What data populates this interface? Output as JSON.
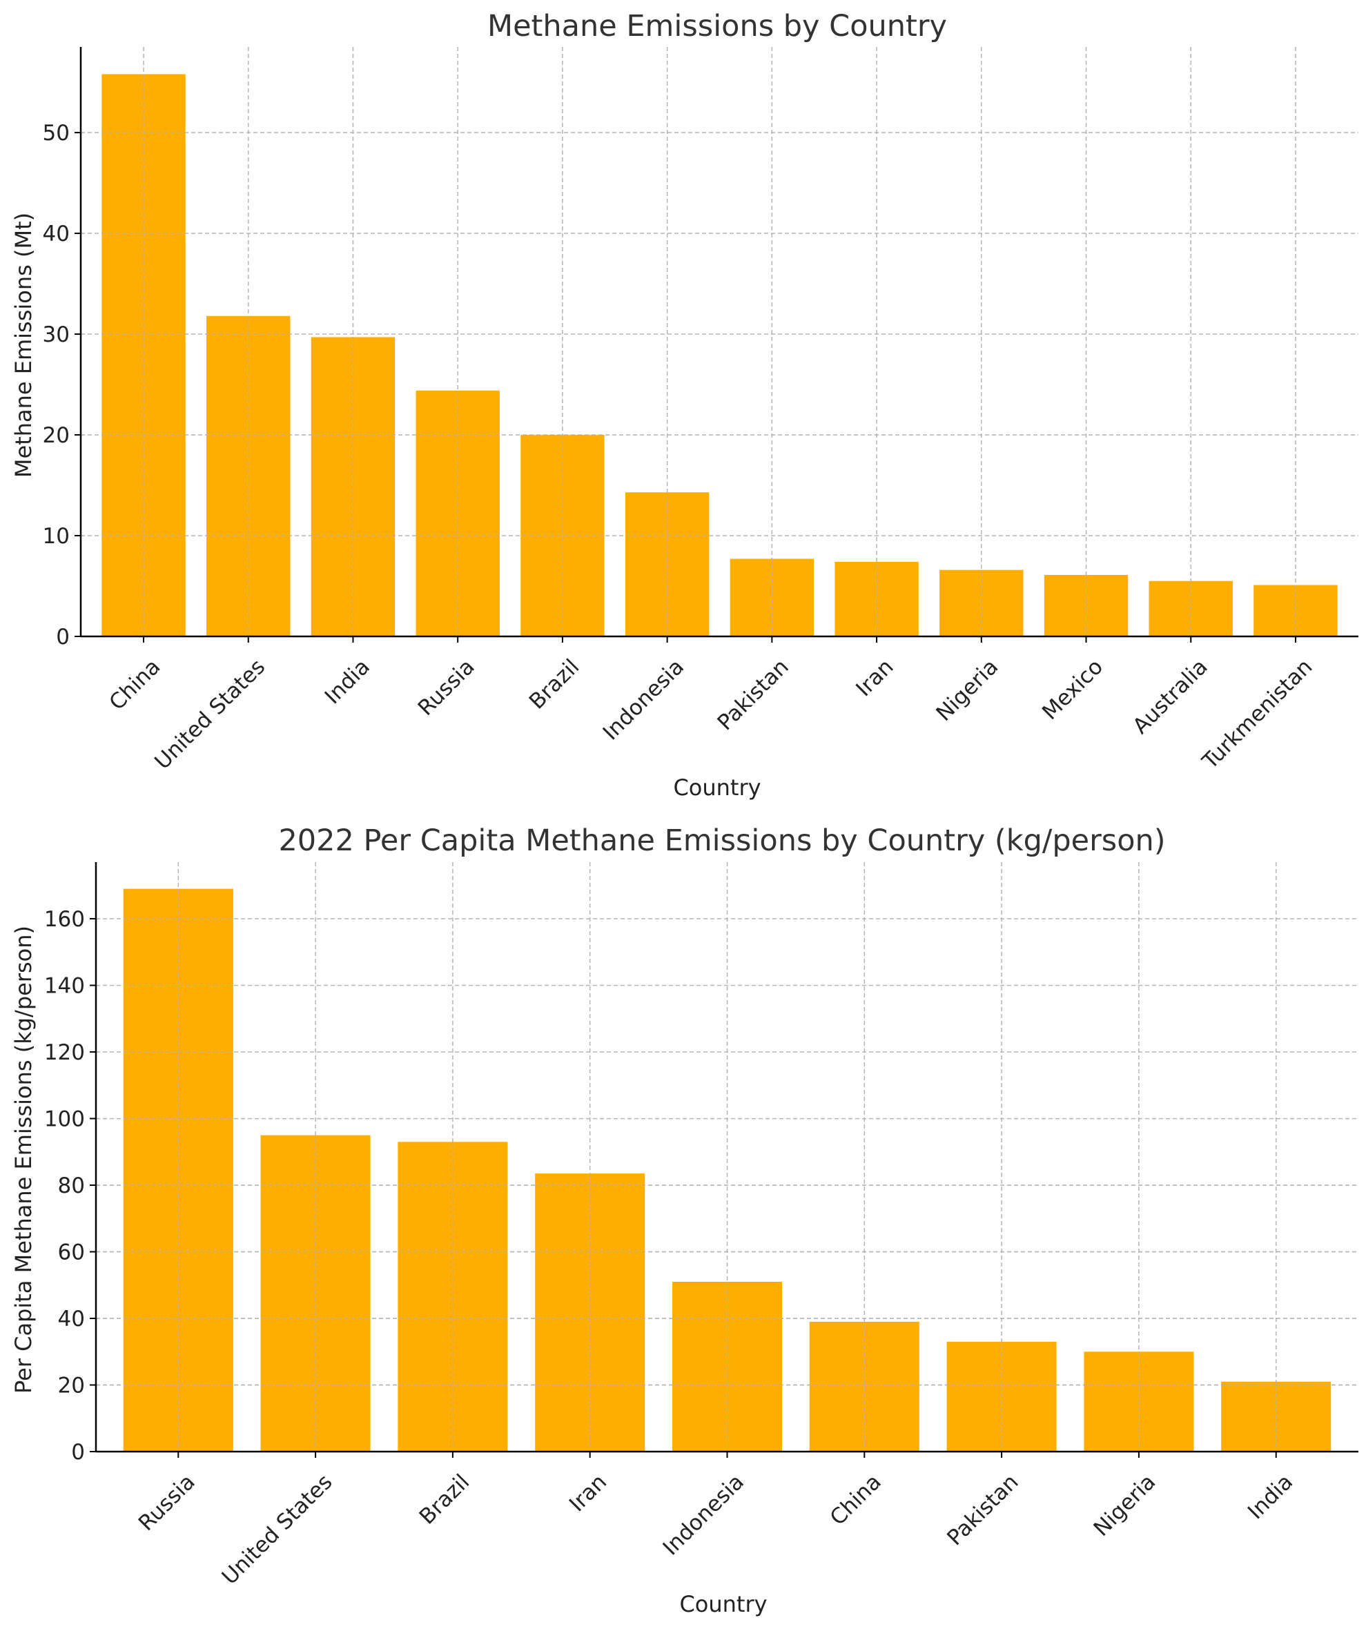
{
  "chart_data": [
    {
      "type": "bar",
      "title": "Methane Emissions by Country",
      "xlabel": "Country",
      "ylabel": "Methane Emissions (Mt)",
      "categories": [
        "China",
        "United States",
        "India",
        "Russia",
        "Brazil",
        "Indonesia",
        "Pakistan",
        "Iran",
        "Nigeria",
        "Mexico",
        "Australia",
        "Turkmenistan"
      ],
      "values": [
        55.8,
        31.8,
        29.7,
        24.4,
        20.0,
        14.3,
        7.7,
        7.4,
        6.6,
        6.1,
        5.5,
        5.1
      ],
      "ylim": [
        0,
        58.5
      ],
      "yticks": [
        0,
        10,
        20,
        30,
        40,
        50
      ],
      "grid": true,
      "bar_color": "#FFAE00"
    },
    {
      "type": "bar",
      "title": "2022 Per Capita Methane Emissions by Country (kg/person)",
      "xlabel": "Country",
      "ylabel": "Per Capita Methane Emissions (kg/person)",
      "categories": [
        "Russia",
        "United States",
        "Brazil",
        "Iran",
        "Indonesia",
        "China",
        "Pakistan",
        "Nigeria",
        "India"
      ],
      "values": [
        169,
        95,
        93,
        83.5,
        51,
        39,
        33,
        30,
        21
      ],
      "ylim": [
        0,
        177
      ],
      "yticks": [
        0,
        20,
        40,
        60,
        80,
        100,
        120,
        140,
        160
      ],
      "grid": true,
      "bar_color": "#FFAE00"
    }
  ]
}
